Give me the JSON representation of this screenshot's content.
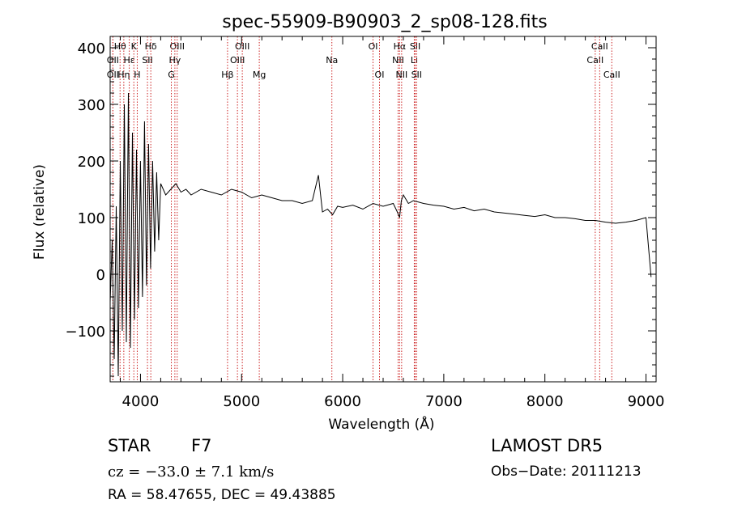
{
  "chart_data": {
    "type": "line",
    "title": "spec-55909-B90903_2_sp08-128.fits",
    "xlabel": "Wavelength (Å)",
    "ylabel": "Flux (relative)",
    "xlim": [
      3700,
      9100
    ],
    "ylim": [
      -190,
      420
    ],
    "xticks": [
      4000,
      5000,
      6000,
      7000,
      8000,
      9000
    ],
    "yticks": [
      -100,
      0,
      100,
      200,
      300,
      400
    ],
    "grid": false,
    "line_color": "#000000",
    "marker_line_color": "#cc2222",
    "series": [
      {
        "x": [
          3700,
          3720,
          3740,
          3760,
          3780,
          3800,
          3820,
          3840,
          3860,
          3880,
          3900,
          3920,
          3940,
          3960,
          3980,
          4000,
          4020,
          4040,
          4060,
          4080,
          4100,
          4120,
          4140,
          4160,
          4180,
          4200,
          4250,
          4300,
          4350,
          4400,
          4450,
          4500,
          4600,
          4700,
          4800,
          4900,
          5000,
          5100,
          5200,
          5300,
          5400,
          5500,
          5600,
          5700,
          5760,
          5800,
          5850,
          5900,
          5950,
          6000,
          6100,
          6200,
          6300,
          6400,
          6500,
          6540,
          6563,
          6580,
          6600,
          6650,
          6700,
          6800,
          6900,
          7000,
          7100,
          7200,
          7300,
          7400,
          7500,
          7600,
          7700,
          7800,
          7900,
          8000,
          8100,
          8200,
          8300,
          8400,
          8500,
          8600,
          8700,
          8800,
          8900,
          9000,
          9050
        ],
        "y": [
          -50,
          60,
          -150,
          120,
          -180,
          200,
          -100,
          300,
          -120,
          320,
          -130,
          250,
          -80,
          220,
          -60,
          200,
          -40,
          270,
          -20,
          230,
          10,
          200,
          40,
          180,
          60,
          160,
          140,
          150,
          160,
          145,
          150,
          140,
          150,
          145,
          140,
          150,
          145,
          135,
          140,
          135,
          130,
          130,
          125,
          130,
          175,
          110,
          115,
          105,
          120,
          118,
          122,
          115,
          125,
          120,
          125,
          110,
          100,
          130,
          140,
          125,
          130,
          125,
          122,
          120,
          115,
          118,
          112,
          115,
          110,
          108,
          106,
          104,
          102,
          105,
          100,
          100,
          98,
          95,
          95,
          92,
          90,
          92,
          95,
          100,
          -5
        ]
      }
    ],
    "line_markers": [
      {
        "label": "Hθ",
        "x": 3798,
        "row": 1
      },
      {
        "label": "OII",
        "x": 3727,
        "row": 2
      },
      {
        "label": "OII",
        "x": 3727,
        "row": 3
      },
      {
        "label": "Hη",
        "x": 3835,
        "row": 3
      },
      {
        "label": "Hε",
        "x": 3889,
        "row": 2
      },
      {
        "label": "K",
        "x": 3934,
        "row": 1
      },
      {
        "label": "H",
        "x": 3968,
        "row": 3
      },
      {
        "label": "SII",
        "x": 4069,
        "row": 2
      },
      {
        "label": "Hδ",
        "x": 4102,
        "row": 1
      },
      {
        "label": "OIII",
        "x": 4363,
        "row": 1
      },
      {
        "label": "Hγ",
        "x": 4340,
        "row": 2
      },
      {
        "label": "G",
        "x": 4305,
        "row": 3
      },
      {
        "label": "Hβ",
        "x": 4861,
        "row": 3
      },
      {
        "label": "OIII",
        "x": 4959,
        "row": 2
      },
      {
        "label": "OIII",
        "x": 5007,
        "row": 1
      },
      {
        "label": "Mg",
        "x": 5175,
        "row": 3
      },
      {
        "label": "Na",
        "x": 5893,
        "row": 2
      },
      {
        "label": "OI",
        "x": 6300,
        "row": 1
      },
      {
        "label": "OI",
        "x": 6364,
        "row": 3
      },
      {
        "label": "NII",
        "x": 6548,
        "row": 2
      },
      {
        "label": "Hα",
        "x": 6563,
        "row": 1
      },
      {
        "label": "NII",
        "x": 6583,
        "row": 3
      },
      {
        "label": "Li",
        "x": 6708,
        "row": 2
      },
      {
        "label": "SII",
        "x": 6717,
        "row": 1
      },
      {
        "label": "SII",
        "x": 6731,
        "row": 3
      },
      {
        "label": "CaII",
        "x": 8498,
        "row": 2
      },
      {
        "label": "CaII",
        "x": 8542,
        "row": 1
      },
      {
        "label": "CaII",
        "x": 8662,
        "row": 3
      }
    ]
  },
  "info": {
    "class_label": "STAR",
    "subclass": "F7",
    "cz": "cz = −33.0 ± 7.1 km/s",
    "coords": "RA =  58.47655, DEC =  49.43885",
    "survey": "LAMOST DR5",
    "obs_date": "Obs−Date: 20111213"
  }
}
